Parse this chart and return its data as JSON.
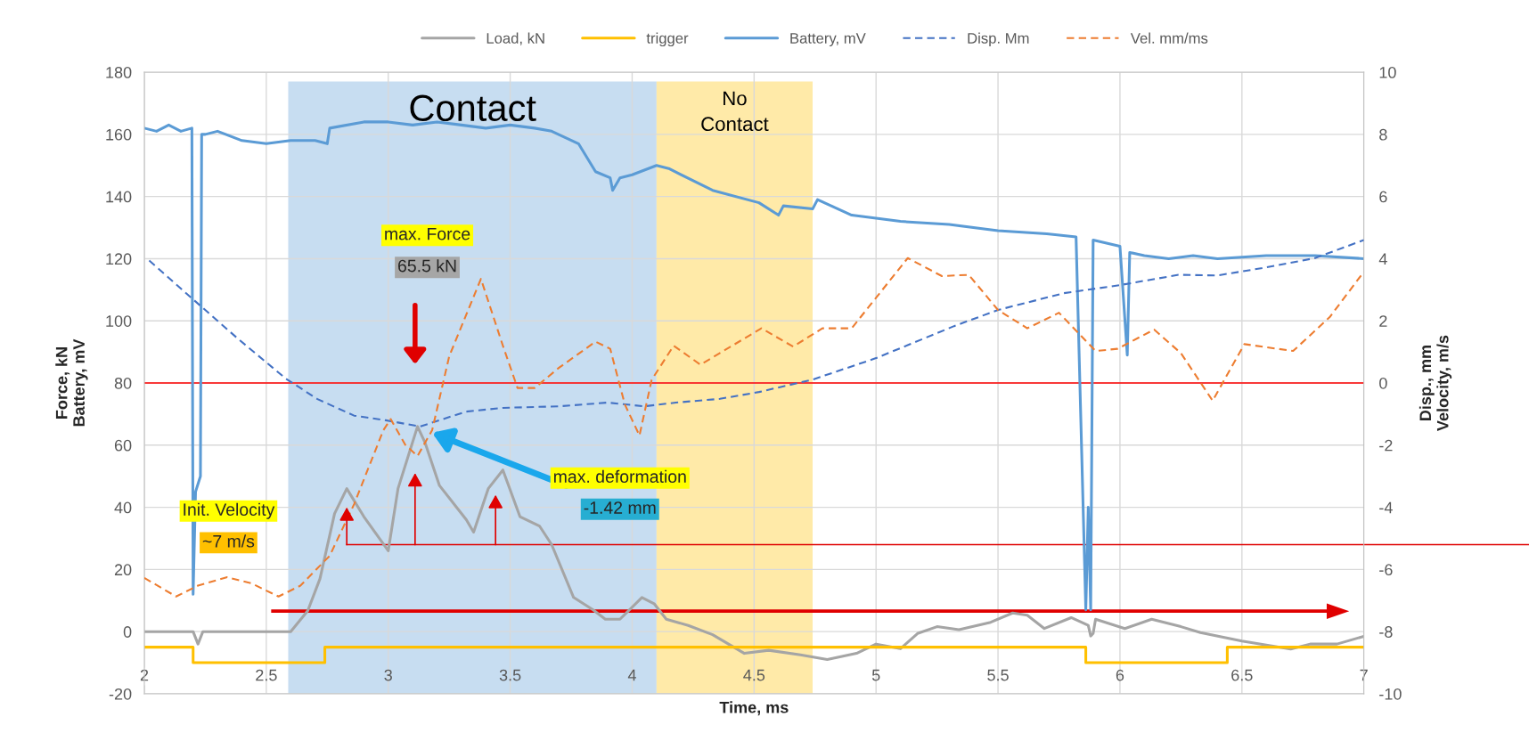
{
  "chart_data": {
    "type": "line",
    "xlabel": "Time, ms",
    "ylabel": "Force, kN\nBattery, mV",
    "y2label": "Disp., mm\nVelocity, m/s",
    "xlim": [
      2,
      7
    ],
    "xticks": [
      2,
      2.5,
      3,
      3.5,
      4,
      4.5,
      5,
      5.5,
      6,
      6.5,
      7
    ],
    "ylim": [
      -20,
      180
    ],
    "yticks": [
      -20,
      0,
      20,
      40,
      60,
      80,
      100,
      120,
      140,
      160,
      180
    ],
    "y2lim": [
      -10,
      10
    ],
    "y2ticks": [
      -10,
      -8,
      -6,
      -4,
      -2,
      0,
      2,
      4,
      6,
      8,
      10
    ],
    "grid": true,
    "legend": "top",
    "bands": [
      {
        "axis": "x",
        "from": 2.59,
        "to": 4.1,
        "label": "Contact",
        "color": "#bdd7ee"
      },
      {
        "axis": "x",
        "from": 4.1,
        "to": 4.74,
        "label": "No\nContact",
        "color": "#ffe699"
      }
    ],
    "ref_lines": [
      {
        "axis": "y",
        "value": 80,
        "color": "#ff0000"
      },
      {
        "axis": "y",
        "value": 28,
        "color": "#e00000"
      }
    ],
    "annotations": [
      "max. Force",
      "65.5 kN",
      "max. deformation",
      "-1.42 mm",
      "Init. Velocity",
      "~7 m/s"
    ],
    "series": [
      {
        "name": "Load, kN",
        "color": "#a5a5a5",
        "line_style": "solid",
        "x": [
          2,
          2.2,
          2.22,
          2.24,
          2.6,
          2.67,
          2.72,
          2.78,
          2.83,
          2.9,
          3.0,
          3.04,
          3.12,
          3.15,
          3.21,
          3.32,
          3.35,
          3.41,
          3.47,
          3.54,
          3.62,
          3.67,
          3.76,
          3.84,
          3.89,
          3.95,
          4.04,
          4.09,
          4.14,
          4.23,
          4.33,
          4.46,
          4.56,
          4.69,
          4.8,
          4.92,
          5.0,
          5.1,
          5.17,
          5.25,
          5.34,
          5.47,
          5.56,
          5.62,
          5.69,
          5.8,
          5.87,
          5.88,
          5.89,
          5.9,
          6.02,
          6.13,
          6.25,
          6.33,
          6.5,
          6.7,
          6.78,
          6.89,
          7.0
        ],
        "values": [
          0,
          0,
          -4,
          0,
          0,
          6.7,
          17,
          38,
          46,
          37,
          26,
          46,
          66,
          61,
          47,
          36,
          32,
          46,
          52,
          37,
          34,
          28,
          11,
          7,
          4,
          4,
          11,
          9,
          4,
          2,
          -1,
          -7,
          -6,
          -7.5,
          -9,
          -7,
          -4,
          -5.5,
          -0.6,
          1.6,
          0.6,
          3,
          6,
          5.3,
          1,
          4.5,
          2,
          -1.4,
          -0.6,
          4,
          1,
          4,
          1.6,
          -0.3,
          -3,
          -5.6,
          -4,
          -4,
          -1.5
        ]
      },
      {
        "name": "trigger",
        "color": "#ffc000",
        "line_style": "solid",
        "x": [
          2,
          2.2,
          2.2,
          2.74,
          2.74,
          5.86,
          5.86,
          6.44,
          6.44,
          7
        ],
        "values": [
          -5,
          -5,
          -10,
          -10,
          -5,
          -5,
          -10,
          -10,
          -5,
          -5
        ]
      },
      {
        "name": "Battery, mV",
        "color": "#5b9bd5",
        "line_style": "solid",
        "x": [
          2,
          2.05,
          2.1,
          2.15,
          2.195,
          2.2,
          2.21,
          2.23,
          2.235,
          2.25,
          2.3,
          2.4,
          2.5,
          2.6,
          2.7,
          2.75,
          2.76,
          2.9,
          3.0,
          3.1,
          3.2,
          3.3,
          3.4,
          3.5,
          3.6,
          3.67,
          3.78,
          3.85,
          3.91,
          3.92,
          3.95,
          4.0,
          4.1,
          4.15,
          4.33,
          4.52,
          4.6,
          4.62,
          4.74,
          4.76,
          4.9,
          5.0,
          5.1,
          5.3,
          5.5,
          5.7,
          5.82,
          5.86,
          5.87,
          5.88,
          5.89,
          6.0,
          6.03,
          6.04,
          6.1,
          6.2,
          6.3,
          6.4,
          6.6,
          6.8,
          7.0
        ],
        "values": [
          162,
          161,
          163,
          161,
          162,
          12,
          45,
          50,
          160,
          160,
          161,
          158,
          157,
          158,
          158,
          157,
          162,
          164,
          164,
          163,
          164,
          163,
          162,
          163,
          162,
          161,
          157,
          148,
          146,
          142,
          146,
          147,
          150,
          149,
          142,
          138,
          134,
          137,
          136,
          139,
          134,
          133,
          132,
          131,
          129,
          128,
          127,
          7,
          40,
          7,
          126,
          124,
          89,
          122,
          121,
          120,
          121,
          120,
          121,
          121,
          120
        ]
      },
      {
        "name": "Disp. Mm",
        "color": "#4472c4",
        "line_style": "dashed",
        "axis": "y2",
        "x": [
          2.02,
          2.2,
          2.38,
          2.58,
          2.71,
          2.86,
          2.99,
          3.13,
          3.32,
          3.47,
          3.7,
          3.9,
          4.05,
          4.18,
          4.36,
          4.52,
          4.74,
          5.0,
          5.32,
          5.5,
          5.77,
          6.0,
          6.24,
          6.4,
          6.6,
          6.8,
          7.0
        ],
        "values": [
          3.94,
          2.69,
          1.45,
          0.14,
          -0.52,
          -1.05,
          -1.2,
          -1.4,
          -0.92,
          -0.8,
          -0.75,
          -0.63,
          -0.75,
          -0.63,
          -0.51,
          -0.29,
          0.11,
          0.8,
          1.83,
          2.35,
          2.89,
          3.15,
          3.48,
          3.46,
          3.72,
          4.02,
          4.6
        ]
      },
      {
        "name": "Vel. mm/ms",
        "color": "#ed7d31",
        "line_style": "dashed",
        "axis": "y2",
        "x": [
          2.0,
          2.13,
          2.22,
          2.34,
          2.44,
          2.55,
          2.64,
          2.76,
          2.86,
          2.98,
          3.01,
          3.07,
          3.12,
          3.18,
          3.25,
          3.38,
          3.47,
          3.53,
          3.6,
          3.7,
          3.85,
          3.91,
          3.97,
          4.03,
          4.08,
          4.17,
          4.28,
          4.53,
          4.66,
          4.78,
          4.9,
          5.13,
          5.27,
          5.38,
          5.5,
          5.62,
          5.75,
          5.9,
          5.99,
          6.14,
          6.25,
          6.38,
          6.51,
          6.71,
          6.86,
          7.0
        ],
        "values": [
          -6.27,
          -6.87,
          -6.52,
          -6.25,
          -6.45,
          -6.87,
          -6.52,
          -5.56,
          -3.9,
          -1.52,
          -1.16,
          -1.99,
          -2.35,
          -1.52,
          0.86,
          3.35,
          1.2,
          -0.16,
          -0.16,
          0.49,
          1.33,
          1.1,
          -0.69,
          -1.69,
          0.1,
          1.2,
          0.59,
          1.76,
          1.17,
          1.76,
          1.76,
          4.02,
          3.44,
          3.48,
          2.35,
          1.76,
          2.26,
          1.03,
          1.1,
          1.72,
          0.96,
          -0.57,
          1.25,
          1.03,
          2.12,
          3.58
        ]
      }
    ]
  }
}
